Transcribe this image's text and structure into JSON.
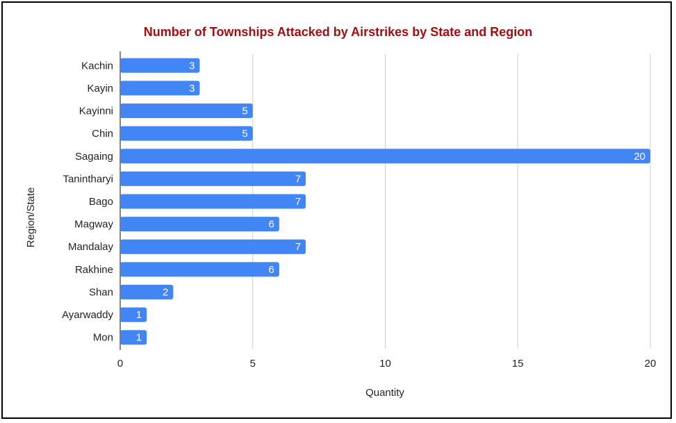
{
  "chart_data": {
    "type": "bar",
    "orientation": "horizontal",
    "title": "Number of Townships Attacked by Airstrikes by State and Region",
    "xlabel": "Quantity",
    "ylabel": "Region/State",
    "categories": [
      "Kachin",
      "Kayin",
      "Kayinni",
      "Chin",
      "Sagaing",
      "Tanintharyi",
      "Bago",
      "Magway",
      "Mandalay",
      "Rakhine",
      "Shan",
      "Ayarwaddy",
      "Mon"
    ],
    "values": [
      3,
      3,
      5,
      5,
      20,
      7,
      7,
      6,
      7,
      6,
      2,
      1,
      1
    ],
    "xlim": [
      0,
      20
    ],
    "xticks": [
      "0",
      "5",
      "10",
      "15",
      "20"
    ],
    "grid": true,
    "data_labels": true,
    "colors": {
      "bar": "#4285f4",
      "title": "#a50e0e",
      "grid": "#cccccc",
      "axis": "#333333",
      "label": "#ffffff"
    }
  }
}
